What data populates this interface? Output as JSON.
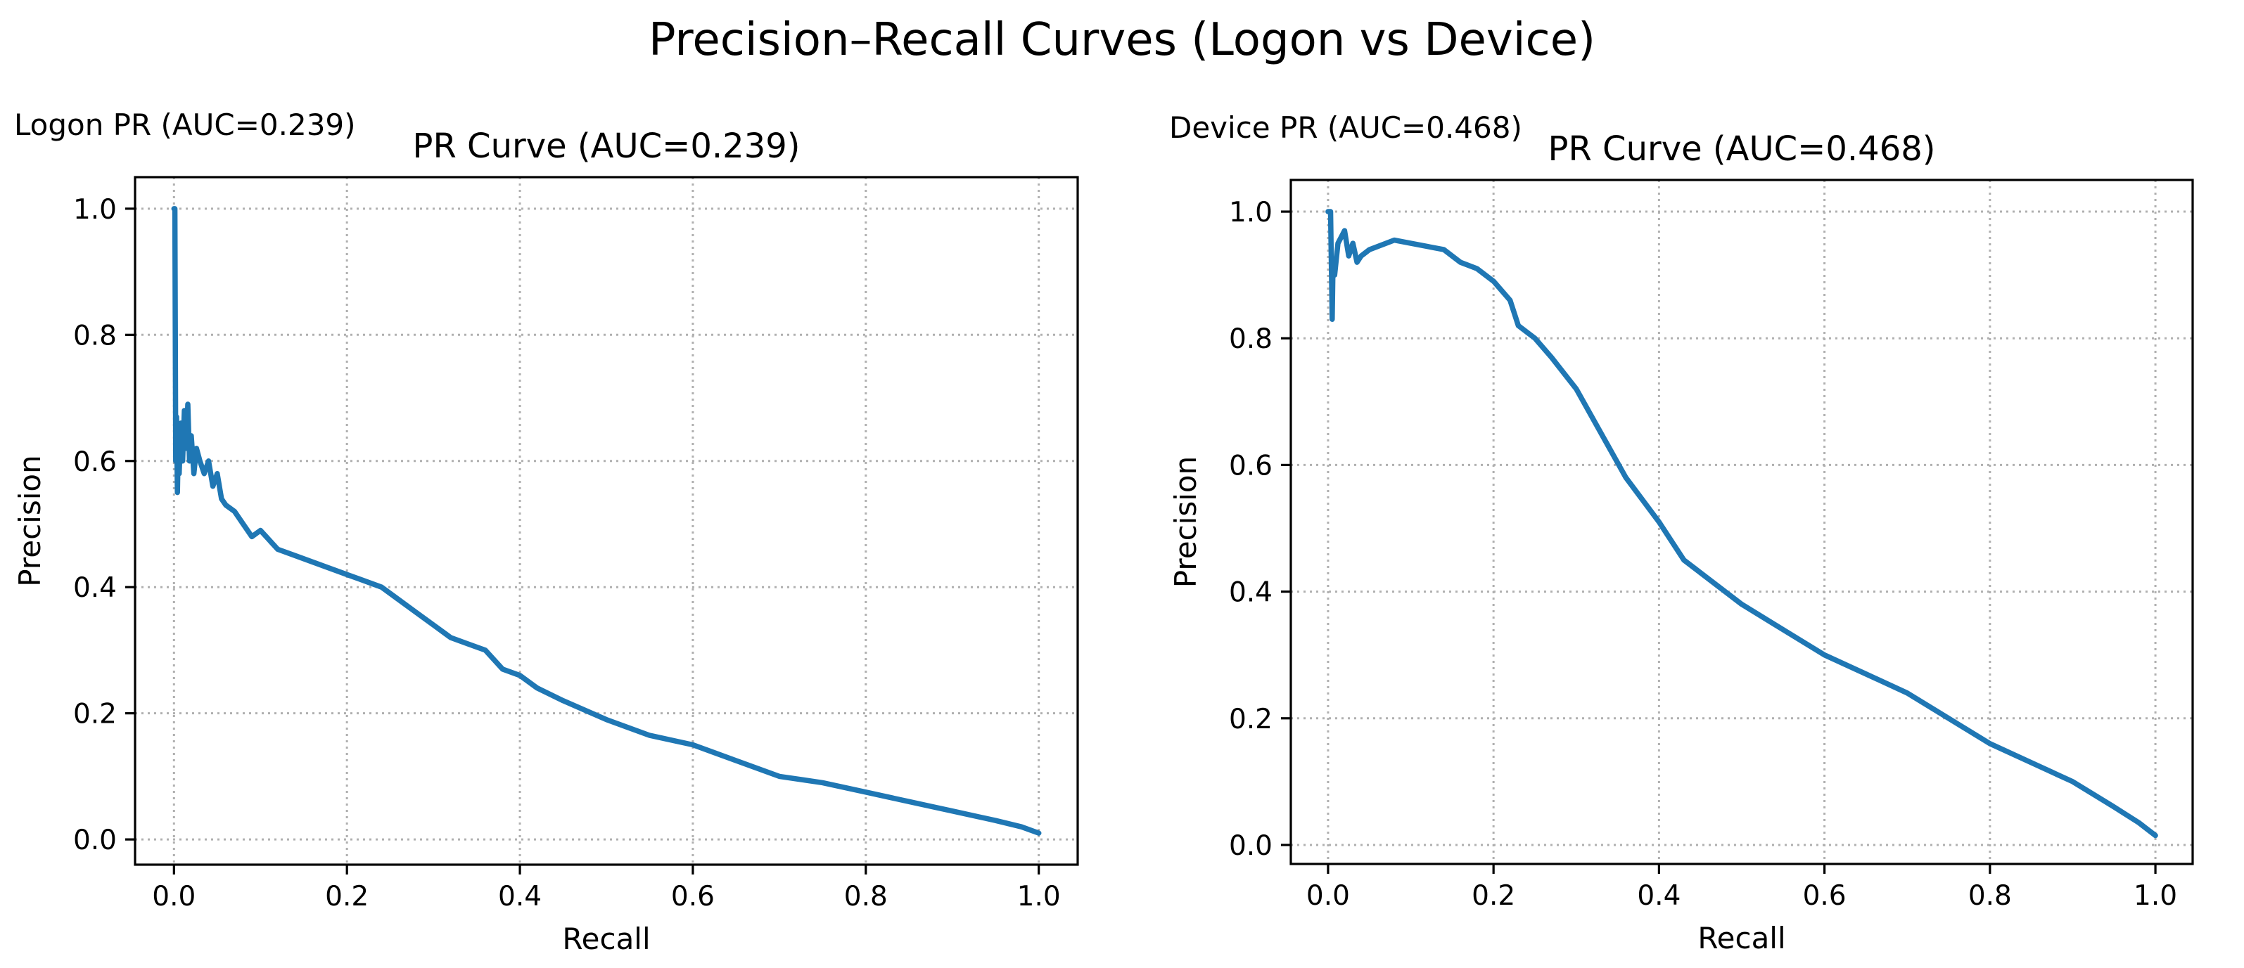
{
  "figure": {
    "suptitle": "Precision–Recall Curves (Logon vs Device)"
  },
  "chart_data": [
    {
      "type": "line",
      "label": "Logon PR (AUC=0.239)",
      "title": "PR Curve (AUC=0.239)",
      "xlabel": "Recall",
      "ylabel": "Precision",
      "xlim": [
        -0.045,
        1.045
      ],
      "ylim": [
        -0.04,
        1.05
      ],
      "xticks": [
        0.0,
        0.2,
        0.4,
        0.6,
        0.8,
        1.0
      ],
      "xtick_labels": [
        "0.0",
        "0.2",
        "0.4",
        "0.6",
        "0.8",
        "1.0"
      ],
      "yticks": [
        0.0,
        0.2,
        0.4,
        0.6,
        0.8,
        1.0
      ],
      "ytick_labels": [
        "0.0",
        "0.2",
        "0.4",
        "0.6",
        "0.8",
        "1.0"
      ],
      "grid": true,
      "series_color": "#1f77b4",
      "series": [
        {
          "name": "PR",
          "x": [
            0.0,
            0.001,
            0.002,
            0.003,
            0.004,
            0.005,
            0.006,
            0.008,
            0.01,
            0.012,
            0.014,
            0.016,
            0.018,
            0.02,
            0.023,
            0.026,
            0.03,
            0.035,
            0.04,
            0.045,
            0.05,
            0.055,
            0.06,
            0.07,
            0.08,
            0.09,
            0.1,
            0.12,
            0.14,
            0.16,
            0.18,
            0.2,
            0.22,
            0.24,
            0.26,
            0.28,
            0.3,
            0.32,
            0.34,
            0.36,
            0.38,
            0.4,
            0.42,
            0.45,
            0.5,
            0.55,
            0.6,
            0.65,
            0.7,
            0.75,
            0.8,
            0.85,
            0.9,
            0.95,
            0.98,
            1.0
          ],
          "y": [
            1.0,
            1.0,
            0.6,
            0.67,
            0.55,
            0.63,
            0.58,
            0.66,
            0.6,
            0.68,
            0.62,
            0.69,
            0.6,
            0.64,
            0.58,
            0.62,
            0.6,
            0.58,
            0.6,
            0.56,
            0.58,
            0.54,
            0.53,
            0.52,
            0.5,
            0.48,
            0.49,
            0.46,
            0.45,
            0.44,
            0.43,
            0.42,
            0.41,
            0.4,
            0.38,
            0.36,
            0.34,
            0.32,
            0.31,
            0.3,
            0.27,
            0.26,
            0.24,
            0.22,
            0.19,
            0.165,
            0.15,
            0.125,
            0.1,
            0.09,
            0.075,
            0.06,
            0.045,
            0.03,
            0.02,
            0.01
          ]
        }
      ]
    },
    {
      "type": "line",
      "label": "Device PR (AUC=0.468)",
      "title": "PR Curve (AUC=0.468)",
      "xlabel": "Recall",
      "ylabel": "Precision",
      "xlim": [
        -0.045,
        1.045
      ],
      "ylim": [
        -0.03,
        1.05
      ],
      "xticks": [
        0.0,
        0.2,
        0.4,
        0.6,
        0.8,
        1.0
      ],
      "xtick_labels": [
        "0.0",
        "0.2",
        "0.4",
        "0.6",
        "0.8",
        "1.0"
      ],
      "yticks": [
        0.0,
        0.2,
        0.4,
        0.6,
        0.8,
        1.0
      ],
      "ytick_labels": [
        "0.0",
        "0.2",
        "0.4",
        "0.6",
        "0.8",
        "1.0"
      ],
      "grid": true,
      "series_color": "#1f77b4",
      "series": [
        {
          "name": "PR",
          "x": [
            0.0,
            0.003,
            0.005,
            0.006,
            0.008,
            0.012,
            0.016,
            0.02,
            0.025,
            0.03,
            0.035,
            0.04,
            0.05,
            0.06,
            0.08,
            0.1,
            0.12,
            0.14,
            0.16,
            0.18,
            0.2,
            0.22,
            0.23,
            0.25,
            0.27,
            0.3,
            0.33,
            0.36,
            0.4,
            0.43,
            0.45,
            0.5,
            0.55,
            0.6,
            0.65,
            0.7,
            0.75,
            0.8,
            0.85,
            0.9,
            0.95,
            0.98,
            1.0
          ],
          "y": [
            1.0,
            1.0,
            0.83,
            0.92,
            0.9,
            0.95,
            0.96,
            0.97,
            0.93,
            0.95,
            0.92,
            0.93,
            0.94,
            0.945,
            0.955,
            0.95,
            0.945,
            0.94,
            0.92,
            0.91,
            0.89,
            0.86,
            0.82,
            0.8,
            0.77,
            0.72,
            0.65,
            0.58,
            0.51,
            0.45,
            0.43,
            0.38,
            0.34,
            0.3,
            0.27,
            0.24,
            0.2,
            0.16,
            0.13,
            0.1,
            0.06,
            0.035,
            0.015
          ]
        }
      ]
    }
  ]
}
